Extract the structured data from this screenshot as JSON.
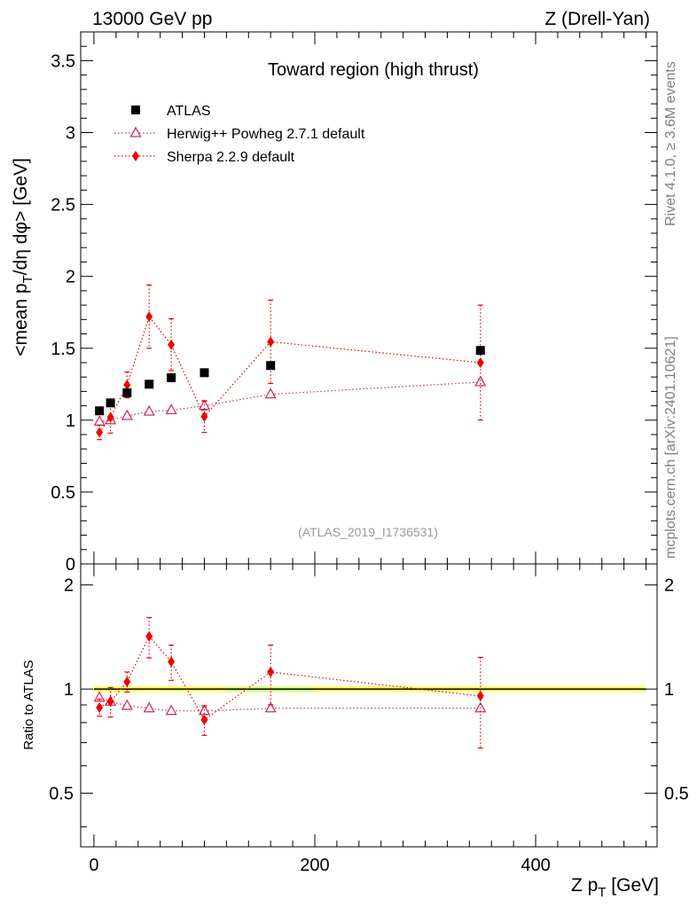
{
  "header": {
    "energy": "13000 GeV pp",
    "process": "Z (Drell-Yan)"
  },
  "side": {
    "rivet": "Rivet 4.1.0, ≥ 3.6M events",
    "site": "mcplots.cern.ch [arXiv:2401.10621]"
  },
  "chart_data": {
    "type": "scatter",
    "title": "Toward region (high thrust)",
    "analysis_label": "(ATLAS_2019_I1736531)",
    "xlabel": "Z p_T [GeV]",
    "ylabel": "<mean p_T/dη dφ> [GeV]",
    "xlim": [
      -12,
      510
    ],
    "ylim": [
      0,
      3.7
    ],
    "x_ticks": [
      0,
      200,
      400
    ],
    "y_ticks": [
      0,
      0.5,
      1,
      1.5,
      2,
      2.5,
      3,
      3.5
    ],
    "y_tick_labels": [
      "0",
      "0.5",
      "1",
      "1.5",
      "2",
      "2.5",
      "3",
      "3.5"
    ],
    "legend": [
      "ATLAS",
      "Herwig++ Powheg 2.7.1 default",
      "Sherpa 2.2.9 default"
    ],
    "legend_position": "top-left",
    "series": [
      {
        "name": "ATLAS",
        "color": "#000000",
        "marker": "square",
        "points": [
          {
            "x": 5,
            "y": 1.065,
            "err": 0.01
          },
          {
            "x": 15,
            "y": 1.12,
            "err": 0.01
          },
          {
            "x": 30,
            "y": 1.19,
            "err": 0.01
          },
          {
            "x": 50,
            "y": 1.25,
            "err": 0.01
          },
          {
            "x": 70,
            "y": 1.295,
            "err": 0.01
          },
          {
            "x": 100,
            "y": 1.33,
            "err": 0.01
          },
          {
            "x": 160,
            "y": 1.38,
            "err": 0.02
          },
          {
            "x": 350,
            "y": 1.485,
            "err": 0.02
          }
        ]
      },
      {
        "name": "Herwig++ Powheg 2.7.1 default",
        "color": "#cc3366",
        "marker": "open-triangle",
        "points": [
          {
            "x": 5,
            "y": 0.99,
            "err": 0.01
          },
          {
            "x": 15,
            "y": 1.0,
            "err": 0.01
          },
          {
            "x": 30,
            "y": 1.03,
            "err": 0.01
          },
          {
            "x": 50,
            "y": 1.06,
            "err": 0.01
          },
          {
            "x": 70,
            "y": 1.07,
            "err": 0.01
          },
          {
            "x": 100,
            "y": 1.1,
            "err": 0.03
          },
          {
            "x": 160,
            "y": 1.18,
            "err": 0.01
          },
          {
            "x": 350,
            "y": 1.265,
            "err": 0.02
          }
        ]
      },
      {
        "name": "Sherpa 2.2.9 default",
        "color": "#ee0000",
        "marker": "diamond",
        "points": [
          {
            "x": 5,
            "y": 0.915,
            "err": 0.05
          },
          {
            "x": 15,
            "y": 1.02,
            "err": 0.11
          },
          {
            "x": 30,
            "y": 1.245,
            "err": 0.09
          },
          {
            "x": 50,
            "y": 1.72,
            "err": 0.22
          },
          {
            "x": 70,
            "y": 1.525,
            "err": 0.18
          },
          {
            "x": 100,
            "y": 1.025,
            "err": 0.11
          },
          {
            "x": 160,
            "y": 1.545,
            "err": 0.29
          },
          {
            "x": 350,
            "y": 1.4,
            "err": 0.4
          }
        ]
      }
    ],
    "ratio": {
      "ylabel": "Ratio to ATLAS",
      "ylim": [
        0.35,
        2.3
      ],
      "y_ticks": [
        0.5,
        1,
        2
      ],
      "y_tick_labels": [
        "0.5",
        "1",
        "2"
      ],
      "reference_value": 1,
      "band_color": "#ffff66",
      "band_color_inner": "#ccff99",
      "series": [
        {
          "name": "Herwig++ Powheg 2.7.1 default",
          "points": [
            {
              "x": 5,
              "y": 0.945,
              "err": 0.01
            },
            {
              "x": 15,
              "y": 0.92,
              "err": 0.01
            },
            {
              "x": 30,
              "y": 0.895,
              "err": 0.01
            },
            {
              "x": 50,
              "y": 0.88,
              "err": 0.01
            },
            {
              "x": 70,
              "y": 0.865,
              "err": 0.01
            },
            {
              "x": 100,
              "y": 0.865,
              "err": 0.02
            },
            {
              "x": 160,
              "y": 0.88,
              "err": 0.01
            },
            {
              "x": 350,
              "y": 0.88,
              "err": 0.01
            }
          ]
        },
        {
          "name": "Sherpa 2.2.9 default",
          "points": [
            {
              "x": 5,
              "y": 0.885,
              "err": 0.05
            },
            {
              "x": 15,
              "y": 0.92,
              "err": 0.09
            },
            {
              "x": 30,
              "y": 1.05,
              "err": 0.07
            },
            {
              "x": 50,
              "y": 1.42,
              "err": 0.19
            },
            {
              "x": 70,
              "y": 1.2,
              "err": 0.14
            },
            {
              "x": 100,
              "y": 0.815,
              "err": 0.08
            },
            {
              "x": 160,
              "y": 1.12,
              "err": 0.22
            },
            {
              "x": 350,
              "y": 0.955,
              "err": 0.28
            }
          ]
        }
      ]
    }
  }
}
